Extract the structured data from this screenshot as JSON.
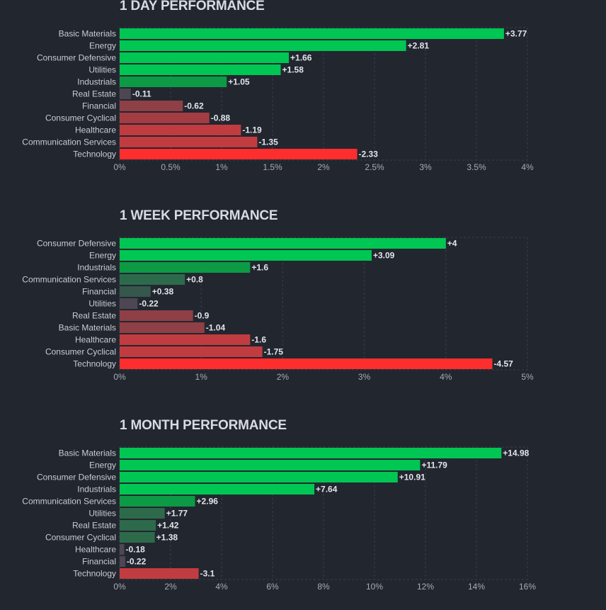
{
  "colors": {
    "background": "#22262f",
    "grid": "#3a3f4b",
    "pos_strong": "#00c653",
    "pos_mid": "#0c9a45",
    "pos_weak": "#2d6a4b",
    "neutral": "#4d4653",
    "neg_weak": "#8f3f46",
    "neg_mid": "#c13c40",
    "neg_strong": "#ff2e2e"
  },
  "chart_data": [
    {
      "type": "bar",
      "orientation": "horizontal",
      "title": "1 DAY PERFORMANCE",
      "categories": [
        "Basic Materials",
        "Energy",
        "Consumer Defensive",
        "Utilities",
        "Industrials",
        "Real Estate",
        "Financial",
        "Consumer Cyclical",
        "Healthcare",
        "Communication Services",
        "Technology"
      ],
      "values": [
        3.77,
        2.81,
        1.66,
        1.58,
        1.05,
        -0.11,
        -0.62,
        -0.88,
        -1.19,
        -1.35,
        -2.33
      ],
      "value_labels": [
        "+3.77",
        "+2.81",
        "+1.66",
        "+1.58",
        "+1.05",
        "-0.11",
        "-0.62",
        "-0.88",
        "-1.19",
        "-1.35",
        "-2.33"
      ],
      "bar_colors": [
        "#00c653",
        "#00c653",
        "#00c653",
        "#00c653",
        "#0c9a45",
        "#4d4653",
        "#8f3f46",
        "#a33d43",
        "#c13c40",
        "#c13c40",
        "#ff2e2e"
      ],
      "xlim": [
        0,
        4
      ],
      "ticks": [
        0,
        0.5,
        1,
        1.5,
        2,
        2.5,
        3,
        3.5,
        4
      ],
      "tick_labels": [
        "0%",
        "0.5%",
        "1%",
        "1.5%",
        "2%",
        "2.5%",
        "3%",
        "3.5%",
        "4%"
      ],
      "xlabel": "",
      "ylabel": ""
    },
    {
      "type": "bar",
      "orientation": "horizontal",
      "title": "1 WEEK PERFORMANCE",
      "categories": [
        "Consumer Defensive",
        "Energy",
        "Industrials",
        "Communication Services",
        "Financial",
        "Utilities",
        "Real Estate",
        "Basic Materials",
        "Healthcare",
        "Consumer Cyclical",
        "Technology"
      ],
      "values": [
        4,
        3.09,
        1.6,
        0.8,
        0.38,
        -0.22,
        -0.9,
        -1.04,
        -1.6,
        -1.75,
        -4.57
      ],
      "value_labels": [
        "+4",
        "+3.09",
        "+1.6",
        "+0.8",
        "+0.38",
        "-0.22",
        "-0.9",
        "-1.04",
        "-1.6",
        "-1.75",
        "-4.57"
      ],
      "bar_colors": [
        "#00c653",
        "#00c653",
        "#0c9a45",
        "#2d6a4b",
        "#35574c",
        "#4d4653",
        "#8f3f46",
        "#8f3f46",
        "#c13c40",
        "#c13c40",
        "#ff2e2e"
      ],
      "xlim": [
        0,
        5
      ],
      "ticks": [
        0,
        1,
        2,
        3,
        4,
        5
      ],
      "tick_labels": [
        "0%",
        "1%",
        "2%",
        "3%",
        "4%",
        "5%"
      ],
      "xlabel": "",
      "ylabel": ""
    },
    {
      "type": "bar",
      "orientation": "horizontal",
      "title": "1 MONTH PERFORMANCE",
      "categories": [
        "Basic Materials",
        "Energy",
        "Consumer Defensive",
        "Industrials",
        "Communication Services",
        "Utilities",
        "Real Estate",
        "Consumer Cyclical",
        "Healthcare",
        "Financial",
        "Technology"
      ],
      "values": [
        14.98,
        11.79,
        10.91,
        7.64,
        2.96,
        1.77,
        1.42,
        1.38,
        -0.18,
        -0.22,
        -3.1
      ],
      "value_labels": [
        "+14.98",
        "+11.79",
        "+10.91",
        "+7.64",
        "+2.96",
        "+1.77",
        "+1.42",
        "+1.38",
        "-0.18",
        "-0.22",
        "-3.1"
      ],
      "bar_colors": [
        "#00c653",
        "#00c653",
        "#00c653",
        "#00c653",
        "#0c9a45",
        "#2d6a4b",
        "#2d6a4b",
        "#2d6a4b",
        "#4d4653",
        "#4d4653",
        "#c13c40"
      ],
      "xlim": [
        0,
        16
      ],
      "ticks": [
        0,
        2,
        4,
        6,
        8,
        10,
        12,
        14,
        16
      ],
      "tick_labels": [
        "0%",
        "2%",
        "4%",
        "6%",
        "8%",
        "10%",
        "12%",
        "14%",
        "16%"
      ],
      "xlabel": "",
      "ylabel": ""
    }
  ]
}
